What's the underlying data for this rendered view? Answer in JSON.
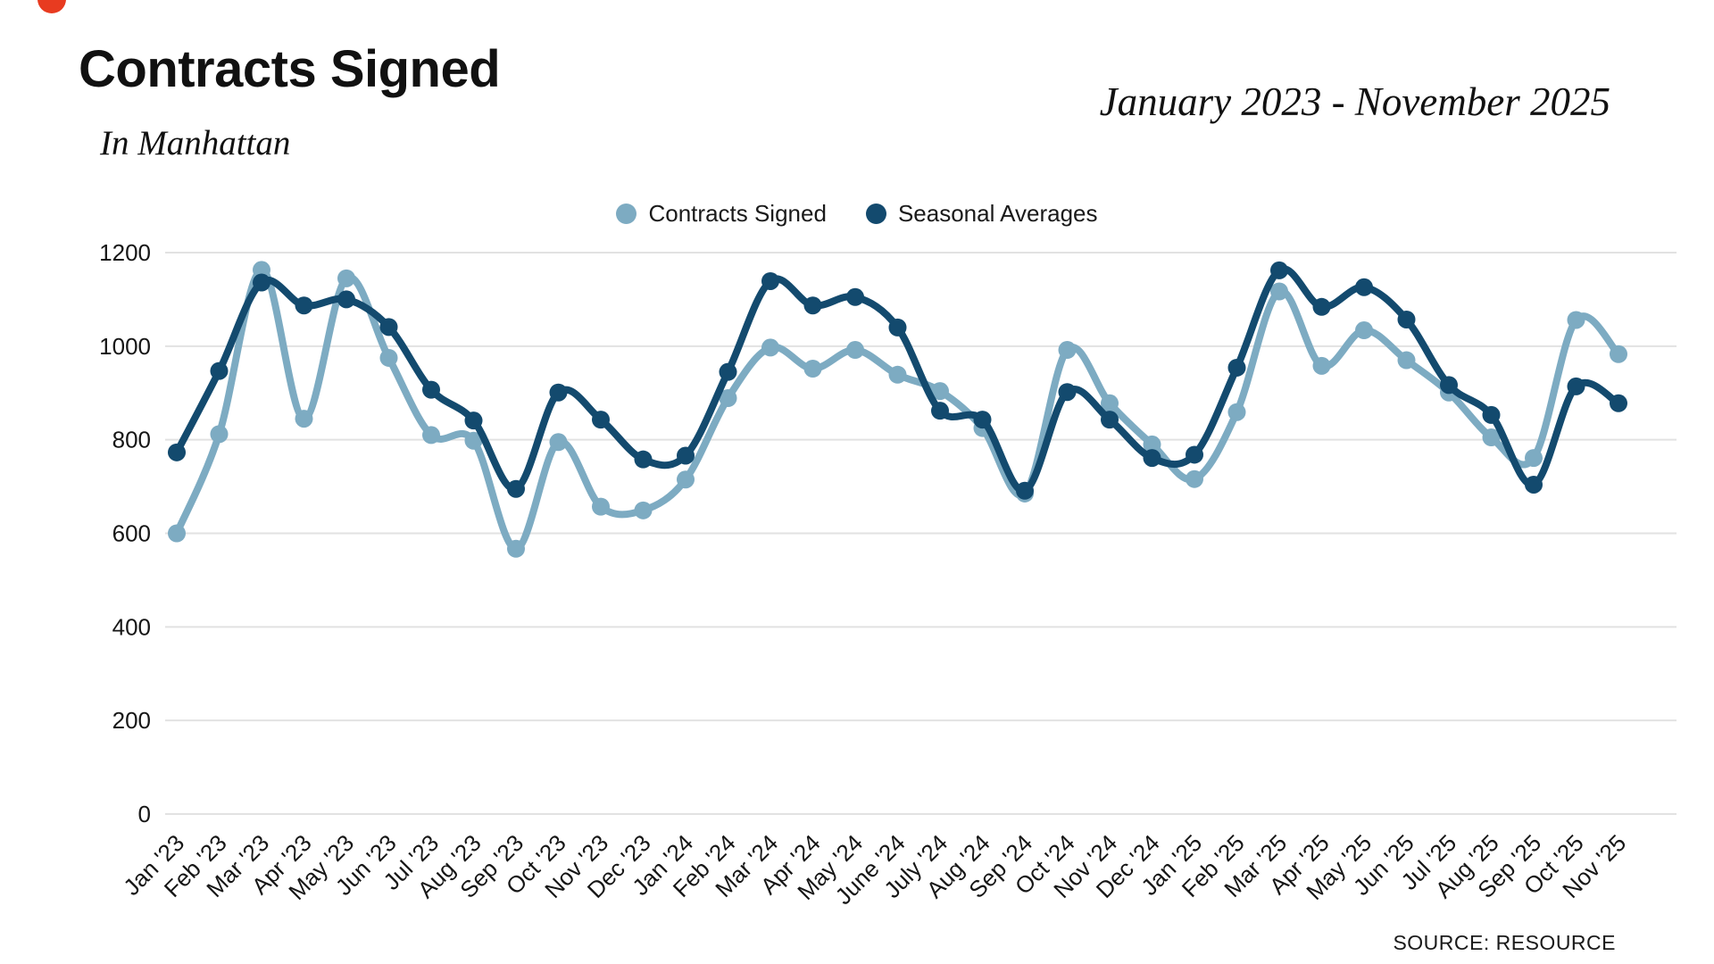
{
  "header": {
    "title": "Contracts Signed",
    "subtitle": "In Manhattan",
    "date_range": "January 2023 - November 2025",
    "brand_mark_color": "#e83b20"
  },
  "legend": [
    {
      "label": "Contracts Signed",
      "color": "#7dabc2"
    },
    {
      "label": "Seasonal Averages",
      "color": "#134a6e"
    }
  ],
  "source": "SOURCE: RESOURCE",
  "chart_data": {
    "type": "line",
    "title": "Contracts Signed",
    "subtitle": "In Manhattan",
    "period": "January 2023 - November 2025",
    "x": [
      "Jan '23",
      "Feb '23",
      "Mar '23",
      "Apr '23",
      "May '23",
      "Jun '23",
      "Jul '23",
      "Aug '23",
      "Sep '23",
      "Oct '23",
      "Nov '23",
      "Dec '23",
      "Jan '24",
      "Feb '24",
      "Mar '24",
      "Apr '24",
      "May '24",
      "June '24",
      "July '24",
      "Aug '24",
      "Sep '24",
      "Oct '24",
      "Nov '24",
      "Dec '24",
      "Jan '25",
      "Feb '25",
      "Mar '25",
      "Apr '25",
      "May '25",
      "Jun '25",
      "Jul '25",
      "Aug '25",
      "Sep '25",
      "Oct '25",
      "Nov '25"
    ],
    "series": [
      {
        "name": "Contracts Signed",
        "color": "#7dabc2",
        "values": [
          600,
          812,
          1163,
          845,
          1145,
          975,
          810,
          798,
          567,
          795,
          657,
          649,
          715,
          889,
          997,
          952,
          992,
          939,
          904,
          825,
          685,
          992,
          878,
          790,
          716,
          859,
          1117,
          958,
          1034,
          970,
          901,
          805,
          761,
          1056,
          983
        ]
      },
      {
        "name": "Seasonal Averages",
        "color": "#134a6e",
        "values": [
          773,
          947,
          1136,
          1087,
          1100,
          1041,
          907,
          841,
          695,
          901,
          843,
          758,
          766,
          945,
          1139,
          1087,
          1105,
          1040,
          862,
          843,
          691,
          902,
          843,
          761,
          768,
          954,
          1162,
          1084,
          1126,
          1057,
          917,
          853,
          704,
          914,
          878
        ]
      }
    ],
    "ylim": [
      0,
      1200
    ],
    "yticks": [
      0,
      200,
      400,
      600,
      800,
      1000,
      1200
    ],
    "xlabel": "",
    "ylabel": "",
    "grid": "horizontal",
    "legend_position": "top-center",
    "smooth": true
  }
}
